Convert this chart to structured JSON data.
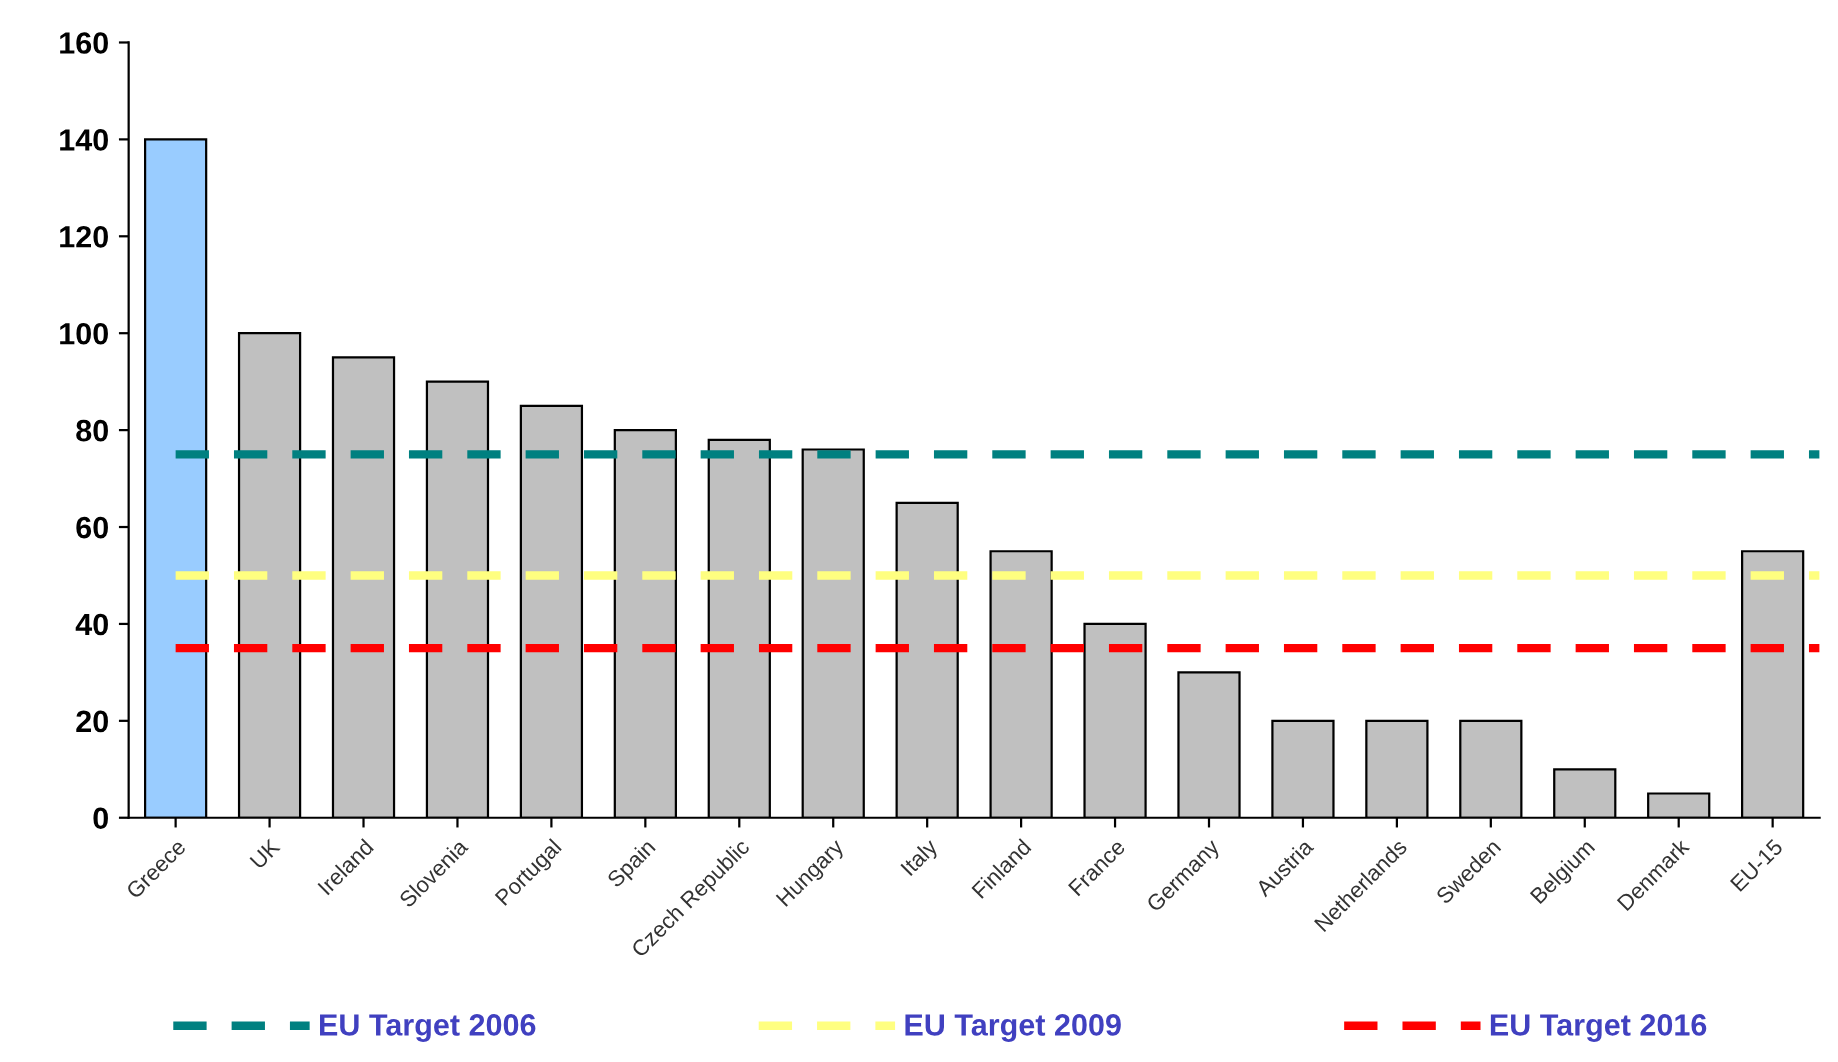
{
  "chart_data": {
    "type": "bar",
    "categories": [
      "Greece",
      "UK",
      "Ireland",
      "Slovenia",
      "Portugal",
      "Spain",
      "Czech Republic",
      "Hungary",
      "Italy",
      "Finland",
      "France",
      "Germany",
      "Austria",
      "Netherlands",
      "Sweden",
      "Belgium",
      "Denmark",
      "EU-15"
    ],
    "values": [
      140,
      100,
      95,
      90,
      85,
      80,
      78,
      76,
      65,
      55,
      40,
      30,
      20,
      20,
      20,
      10,
      5,
      55
    ],
    "colors": [
      "#99ccff",
      "#c0c0c0",
      "#c0c0c0",
      "#c0c0c0",
      "#c0c0c0",
      "#c0c0c0",
      "#c0c0c0",
      "#c0c0c0",
      "#c0c0c0",
      "#c0c0c0",
      "#c0c0c0",
      "#c0c0c0",
      "#c0c0c0",
      "#c0c0c0",
      "#c0c0c0",
      "#c0c0c0",
      "#c0c0c0",
      "#c0c0c0"
    ],
    "ylim": [
      0,
      160
    ],
    "yticks": [
      0,
      20,
      40,
      60,
      80,
      100,
      120,
      140,
      160
    ],
    "ref_lines": [
      {
        "axis": "y",
        "value": 75,
        "label": "EU Target 2006",
        "color": "#008080",
        "line_style": "dashed"
      },
      {
        "axis": "y",
        "value": 50,
        "label": "EU Target 2009",
        "color": "#ffff80",
        "line_style": "dashed"
      },
      {
        "axis": "y",
        "value": 35,
        "label": "EU Target 2016",
        "color": "#ff0000",
        "line_style": "dashed"
      }
    ],
    "grid": false,
    "legend": "bottom"
  }
}
